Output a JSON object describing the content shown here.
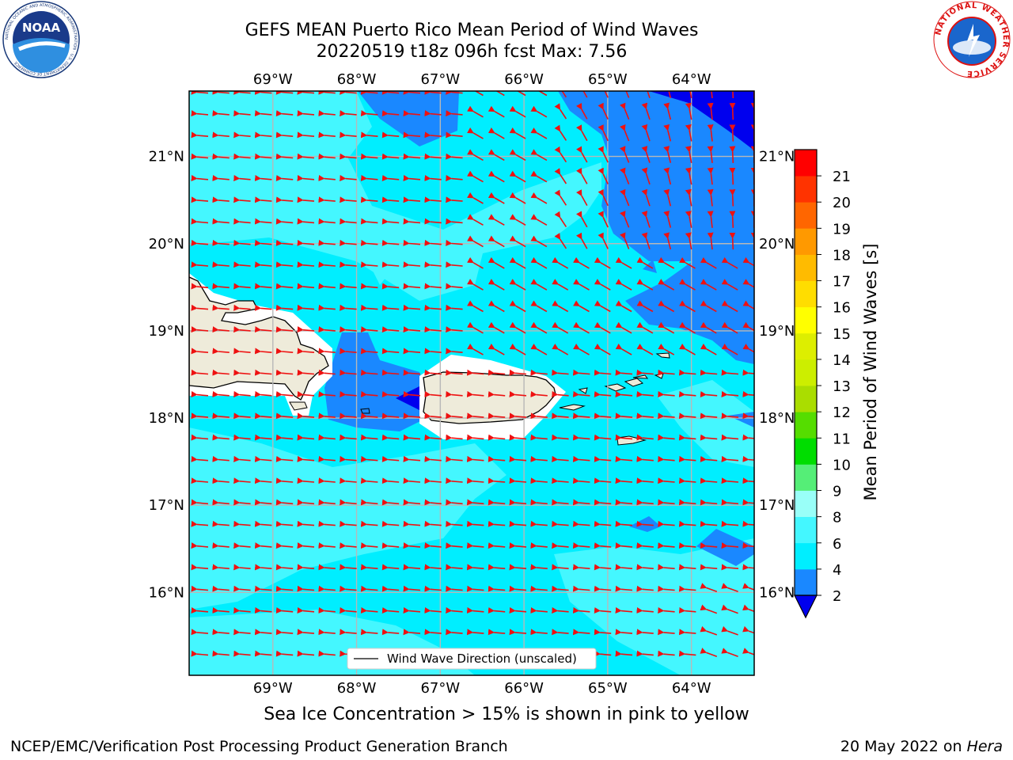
{
  "title": {
    "line1": "GEFS MEAN Puerto Rico Mean Period of Wind Waves",
    "line2": "20220519 t18z 096h fcst   Max: 7.56"
  },
  "footer": {
    "note": "Sea Ice Concentration > 15% is shown in pink to yellow",
    "credit": "NCEP/EMC/Verification Post Processing Product Generation Branch",
    "date": "20 May 2022 on",
    "host": "Hera"
  },
  "map": {
    "lon_labels": [
      "69°W",
      "68°W",
      "67°W",
      "66°W",
      "65°W",
      "64°W"
    ],
    "lat_labels": [
      "21°N",
      "20°N",
      "19°N",
      "18°N",
      "17°N",
      "16°N"
    ],
    "lon_range": [
      -70.0,
      -63.25
    ],
    "lat_range": [
      15.05,
      21.75
    ],
    "legend_label": "Wind Wave Direction (unscaled)",
    "arrow_color": "#ee1111",
    "land_color": "#eeebda",
    "colors": {
      "period_2_4": "#1a88ff",
      "period_4_6": "#00eeff",
      "period_6_8": "#44f7ff",
      "below_2": "#0000ee"
    }
  },
  "colorbar": {
    "label": "Mean Period of Wind Waves [s]",
    "ticks": [
      "2",
      "4",
      "6",
      "8",
      "9",
      "10",
      "11",
      "12",
      "13",
      "14",
      "15",
      "16",
      "17",
      "18",
      "19",
      "20",
      "21"
    ],
    "colors": [
      "#1a88ff",
      "#00eeff",
      "#44f7ff",
      "#99fff8",
      "#55ee77",
      "#00dd00",
      "#55dd00",
      "#aadd00",
      "#ccee00",
      "#ddee00",
      "#ffff00",
      "#ffdd00",
      "#ffbb00",
      "#ff9900",
      "#ff6600",
      "#ff3300",
      "#ff0000"
    ],
    "extend_color": "#0000ee"
  },
  "logos": {
    "noaa_text": "NOAA",
    "noaa_ring": "NATIONAL OCEANIC AND ATMOSPHERIC ADMINISTRATION · U.S. DEPARTMENT OF COMMERCE",
    "nws_ring": "NATIONAL WEATHER SERVICE"
  }
}
